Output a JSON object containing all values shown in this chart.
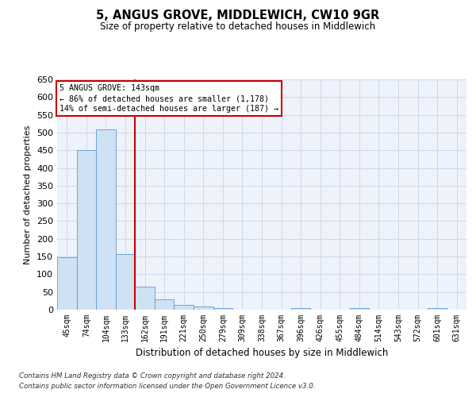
{
  "title": "5, ANGUS GROVE, MIDDLEWICH, CW10 9GR",
  "subtitle": "Size of property relative to detached houses in Middlewich",
  "xlabel": "Distribution of detached houses by size in Middlewich",
  "ylabel": "Number of detached properties",
  "categories": [
    "45sqm",
    "74sqm",
    "104sqm",
    "133sqm",
    "162sqm",
    "191sqm",
    "221sqm",
    "250sqm",
    "279sqm",
    "309sqm",
    "338sqm",
    "367sqm",
    "396sqm",
    "426sqm",
    "455sqm",
    "484sqm",
    "514sqm",
    "543sqm",
    "572sqm",
    "601sqm",
    "631sqm"
  ],
  "values": [
    147,
    450,
    508,
    158,
    66,
    30,
    13,
    9,
    5,
    0,
    0,
    0,
    5,
    0,
    0,
    5,
    0,
    0,
    0,
    5,
    0
  ],
  "bar_color": "#cfe2f3",
  "bar_edge_color": "#5b9bd5",
  "grid_color": "#d0d8e8",
  "background_color": "#ffffff",
  "plot_bg_color": "#eef2fa",
  "annotation_box_color": "#ffffff",
  "annotation_box_edge": "#cc0000",
  "vline_color": "#cc0000",
  "vline_x_index": 3,
  "annotation_text_line1": "5 ANGUS GROVE: 143sqm",
  "annotation_text_line2": "← 86% of detached houses are smaller (1,178)",
  "annotation_text_line3": "14% of semi-detached houses are larger (187) →",
  "ylim": [
    0,
    650
  ],
  "yticks": [
    0,
    50,
    100,
    150,
    200,
    250,
    300,
    350,
    400,
    450,
    500,
    550,
    600,
    650
  ],
  "footnote_line1": "Contains HM Land Registry data © Crown copyright and database right 2024.",
  "footnote_line2": "Contains public sector information licensed under the Open Government Licence v3.0."
}
